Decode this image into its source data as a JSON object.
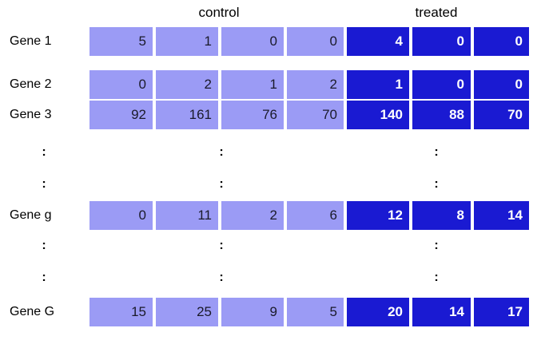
{
  "headers": {
    "control": "control",
    "treated": "treated"
  },
  "dots_glyph": ":",
  "colors": {
    "control": "#9b9bf5",
    "treated": "#1a1ad2"
  },
  "rows": [
    {
      "label": "Gene 1",
      "control": [
        "5",
        "1",
        "0",
        "0"
      ],
      "treated": [
        "4",
        "0",
        "0"
      ]
    },
    {
      "label": "Gene 2",
      "control": [
        "0",
        "2",
        "1",
        "2"
      ],
      "treated": [
        "1",
        "0",
        "0"
      ]
    },
    {
      "label": "Gene 3",
      "control": [
        "92",
        "161",
        "76",
        "70"
      ],
      "treated": [
        "140",
        "88",
        "70"
      ]
    },
    {
      "dots": true
    },
    {
      "dots": true
    },
    {
      "label": "Gene g",
      "control": [
        "0",
        "11",
        "2",
        "6"
      ],
      "treated": [
        "12",
        "8",
        "14"
      ]
    },
    {
      "dots": true
    },
    {
      "dots": true
    },
    {
      "label": "Gene G",
      "control": [
        "15",
        "25",
        "9",
        "5"
      ],
      "treated": [
        "20",
        "14",
        "17"
      ]
    }
  ]
}
